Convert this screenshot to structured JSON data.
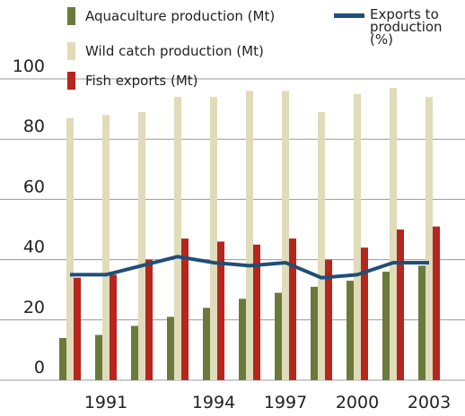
{
  "chart_data": {
    "type": "bar",
    "categories": [
      null,
      "1991",
      null,
      null,
      "1994",
      null,
      "1997",
      null,
      "2000",
      null,
      "2003"
    ],
    "series": [
      {
        "name": "Aquaculture production (Mt)",
        "color": "#6b7a3a",
        "values": [
          14,
          15,
          18,
          21,
          24,
          27,
          29,
          31,
          33,
          36,
          38
        ]
      },
      {
        "name": "Wild catch production (Mt)",
        "color": "#e0dbb9",
        "values": [
          87,
          88,
          89,
          94,
          94,
          96,
          96,
          89,
          95,
          97,
          94
        ]
      },
      {
        "name": "Fish exports (Mt)",
        "color": "#b5261e",
        "values": [
          34,
          35,
          40,
          47,
          46,
          45,
          47,
          40,
          44,
          50,
          51
        ]
      },
      {
        "name": "Exports to production (%)",
        "color": "#1f4e79",
        "type": "line",
        "values": [
          35,
          35,
          38,
          41,
          39,
          38,
          39,
          34,
          35,
          39,
          39
        ]
      }
    ],
    "ylim": [
      0,
      100
    ],
    "yticks": [
      0,
      20,
      40,
      60,
      80,
      100
    ],
    "grid": true
  }
}
